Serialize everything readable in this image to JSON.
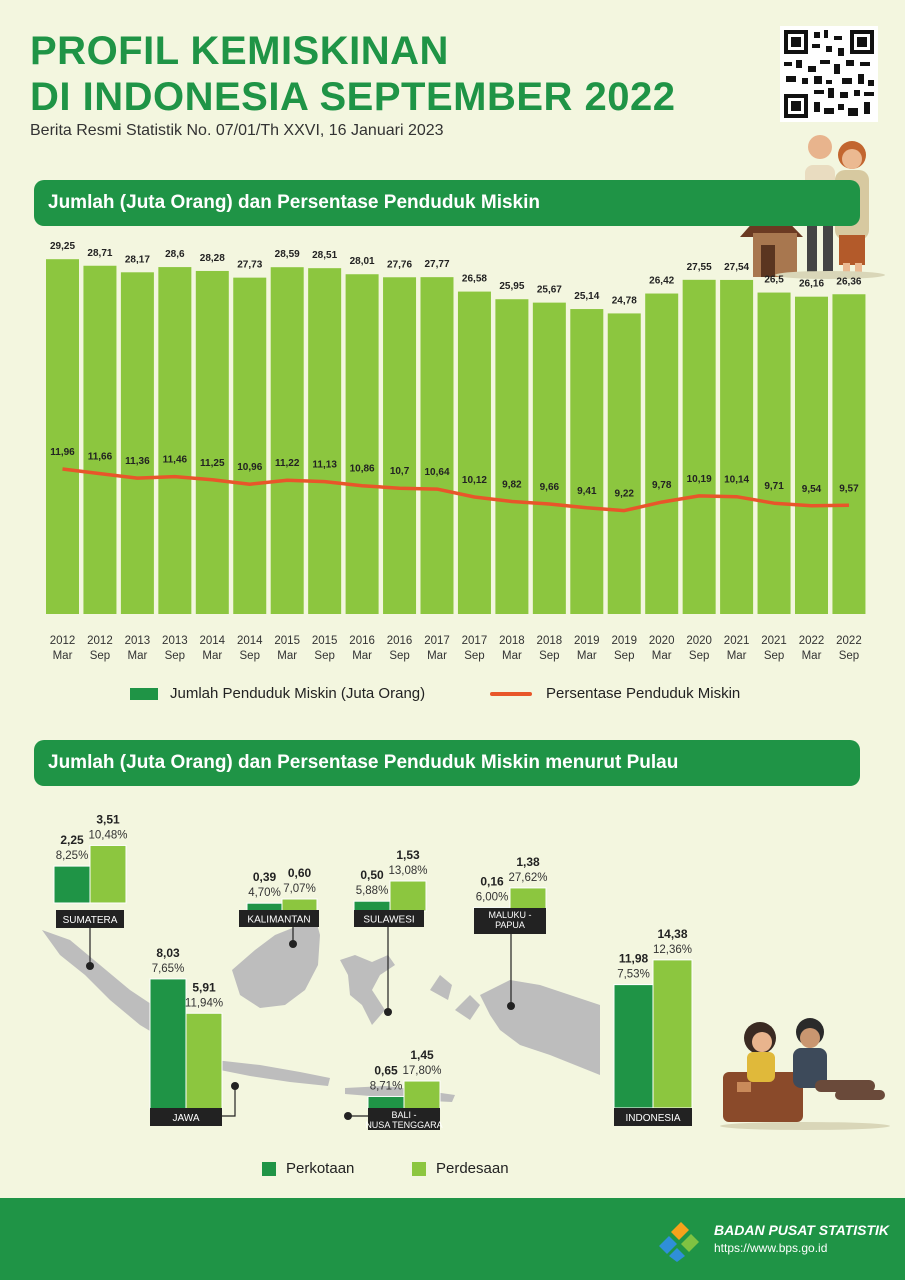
{
  "header": {
    "title_line1": "PROFIL KEMISKINAN",
    "title_line2": "DI INDONESIA SEPTEMBER  2022",
    "subtitle": "Berita Resmi Statistik No. 07/01/Th XXVI, 16 Januari 2023"
  },
  "section1": {
    "title": "Jumlah (Juta Orang) dan Persentase Penduduk Miskin"
  },
  "section2": {
    "title": "Jumlah (Juta Orang) dan Persentase Penduduk Miskin menurut Pulau"
  },
  "colors": {
    "brand_green": "#1f9446",
    "bar_light": "#8cc63f",
    "bar_dark": "#1f9446",
    "line_orange": "#e8562a",
    "map_gray": "#bdbdbd"
  },
  "chart_data": [
    {
      "type": "bar",
      "x": [
        {
          "year": "2012",
          "period": "Mar"
        },
        {
          "year": "2012",
          "period": "Sep"
        },
        {
          "year": "2013",
          "period": "Mar"
        },
        {
          "year": "2013",
          "period": "Sep"
        },
        {
          "year": "2014",
          "period": "Mar"
        },
        {
          "year": "2014",
          "period": "Sep"
        },
        {
          "year": "2015",
          "period": "Mar"
        },
        {
          "year": "2015",
          "period": "Sep"
        },
        {
          "year": "2016",
          "period": "Mar"
        },
        {
          "year": "2016",
          "period": "Sep"
        },
        {
          "year": "2017",
          "period": "Mar"
        },
        {
          "year": "2017",
          "period": "Sep"
        },
        {
          "year": "2018",
          "period": "Mar"
        },
        {
          "year": "2018",
          "period": "Sep"
        },
        {
          "year": "2019",
          "period": "Mar"
        },
        {
          "year": "2019",
          "period": "Sep"
        },
        {
          "year": "2020",
          "period": "Mar"
        },
        {
          "year": "2020",
          "period": "Sep"
        },
        {
          "year": "2021",
          "period": "Mar"
        },
        {
          "year": "2021",
          "period": "Sep"
        },
        {
          "year": "2022",
          "period": "Mar"
        },
        {
          "year": "2022",
          "period": "Sep"
        }
      ],
      "series": [
        {
          "name": "Jumlah Penduduk Miskin (Juta Orang)",
          "type": "bar",
          "values": [
            29.25,
            28.71,
            28.17,
            28.6,
            28.28,
            27.73,
            28.59,
            28.51,
            28.01,
            27.76,
            27.77,
            26.58,
            25.95,
            25.67,
            25.14,
            24.78,
            26.42,
            27.55,
            27.54,
            26.5,
            26.16,
            26.36
          ],
          "labels": [
            "29,25",
            "28,71",
            "28,17",
            "28,6",
            "28,28",
            "27,73",
            "28,59",
            "28,51",
            "28,01",
            "27,76",
            "27,77",
            "26,58",
            "25,95",
            "25,67",
            "25,14",
            "24,78",
            "26,42",
            "27,55",
            "27,54",
            "26,5",
            "26,16",
            "26,36"
          ]
        },
        {
          "name": "Persentase Penduduk Miskin",
          "type": "line",
          "values": [
            11.96,
            11.66,
            11.36,
            11.46,
            11.25,
            10.96,
            11.22,
            11.13,
            10.86,
            10.7,
            10.64,
            10.12,
            9.82,
            9.66,
            9.41,
            9.22,
            9.78,
            10.19,
            10.14,
            9.71,
            9.54,
            9.57
          ],
          "labels": [
            "11,96",
            "11,66",
            "11,36",
            "11,46",
            "11,25",
            "10,96",
            "11,22",
            "11,13",
            "10,86",
            "10,7",
            "10,64",
            "10,12",
            "9,82",
            "9,66",
            "9,41",
            "9,22",
            "9,78",
            "10,19",
            "10,14",
            "9,71",
            "9,54",
            "9,57"
          ]
        }
      ],
      "legend": [
        "Jumlah Penduduk Miskin (Juta Orang)",
        "Persentase Penduduk Miskin"
      ],
      "legend_position": "bottom"
    },
    {
      "type": "bar",
      "categories": [
        "SUMATERA",
        "KALIMANTAN",
        "SULAWESI",
        "MALUKU - PAPUA",
        "JAWA",
        "BALI - NUSA TENGGARA",
        "INDONESIA"
      ],
      "series": [
        {
          "name": "Perkotaan",
          "values": [
            2.25,
            0.39,
            0.5,
            0.16,
            8.03,
            0.65,
            11.98
          ],
          "labels": [
            "2,25",
            "0,39",
            "0,50",
            "0,16",
            "8,03",
            "0,65",
            "11,98"
          ],
          "percent": [
            "8,25%",
            "4,70%",
            "5,88%",
            "6,00%",
            "7,65%",
            "8,71%",
            "7,53%"
          ]
        },
        {
          "name": "Perdesaan",
          "values": [
            3.51,
            0.6,
            1.53,
            1.38,
            5.91,
            1.45,
            14.38
          ],
          "labels": [
            "3,51",
            "0,60",
            "1,53",
            "1,38",
            "5,91",
            "1,45",
            "14,38"
          ],
          "percent": [
            "10,48%",
            "7,07%",
            "13,08%",
            "27,62%",
            "11,94%",
            "17,80%",
            "12,36%"
          ]
        }
      ],
      "legend": [
        "Perkotaan",
        "Perdesaan"
      ],
      "legend_position": "bottom"
    }
  ],
  "footer": {
    "org": "BADAN PUSAT STATISTIK",
    "url": "https://www.bps.go.id"
  }
}
